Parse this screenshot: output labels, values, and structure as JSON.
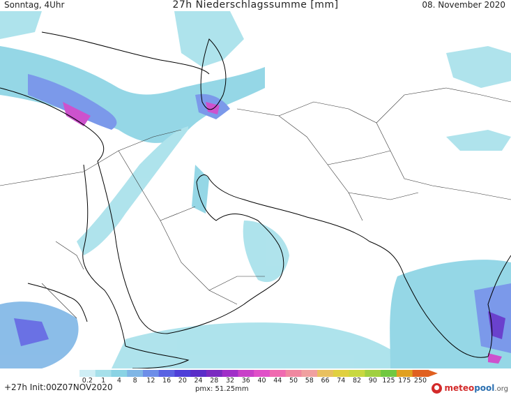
{
  "header": {
    "left": "Sonntag, 4Uhr",
    "title": "27h Niederschlagssumme [mm]",
    "right": "08. November 2020"
  },
  "footer": {
    "run": "+27h Init:00Z07NOV2020",
    "pmx": "pmx: 51.25mm",
    "logo_brand": "meteo",
    "logo_pool": "pool",
    "logo_org": ".org"
  },
  "colorbar": {
    "labels": [
      "0.2",
      "1",
      "4",
      "8",
      "12",
      "16",
      "20",
      "24",
      "28",
      "32",
      "36",
      "40",
      "44",
      "50",
      "58",
      "66",
      "74",
      "82",
      "90",
      "125",
      "175",
      "250"
    ],
    "colors": [
      "#cfeef5",
      "#a6e0ea",
      "#8ad3e4",
      "#7fb6e6",
      "#6d8ee8",
      "#5a62e2",
      "#4e3fd8",
      "#5a2dc8",
      "#7a2bc0",
      "#a02fc8",
      "#c840c8",
      "#e050c8",
      "#f06ab0",
      "#f088a0",
      "#f0a0a0",
      "#e8c060",
      "#e0d040",
      "#c8d840",
      "#a0d040",
      "#70c840",
      "#e0a020",
      "#e06020"
    ]
  },
  "map_layers": {
    "coastline_color": "#000000",
    "border_color": "#333333",
    "precip_light": "#a6e0ea",
    "precip_medium": "#7fb6e6",
    "precip_heavy": "#5a62e2",
    "precip_extreme": "#c840c8"
  }
}
